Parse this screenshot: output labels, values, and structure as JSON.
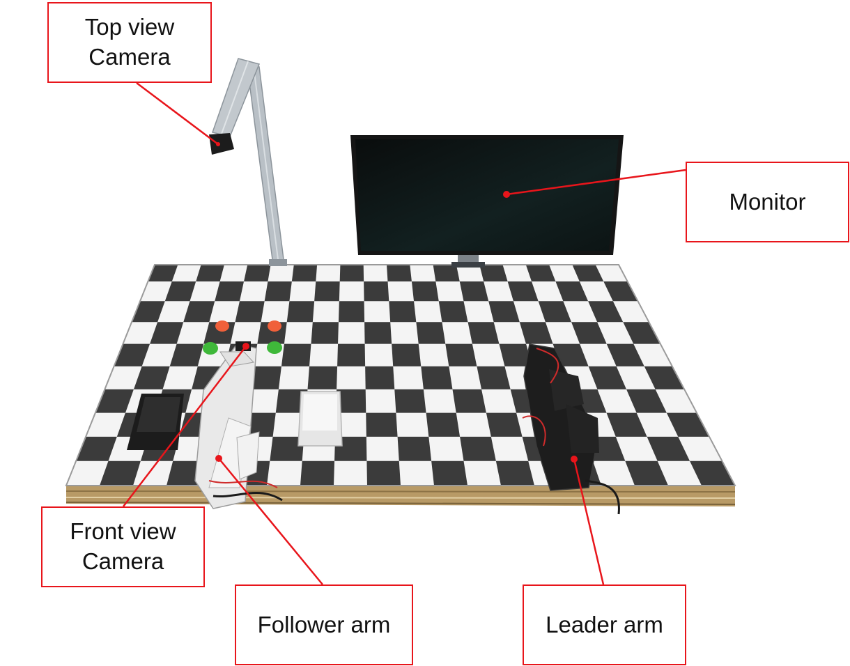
{
  "labels": {
    "top_camera": {
      "line1": "Top view",
      "line2": "Camera"
    },
    "monitor": "Monitor",
    "front_camera": {
      "line1": "Front view",
      "line2": "Camera"
    },
    "follower_arm": "Follower arm",
    "leader_arm": "Leader arm"
  },
  "colors": {
    "callout": "#e8151b",
    "dark_tile": "#3b3b3b",
    "light_tile": "#f4f4f4",
    "rail": "#c9a86c",
    "monitor": "#101414",
    "red_cap": "#f0603a",
    "green_cap": "#3fb83a",
    "black_box": "#1c1c1c",
    "white_box": "#ececec"
  }
}
